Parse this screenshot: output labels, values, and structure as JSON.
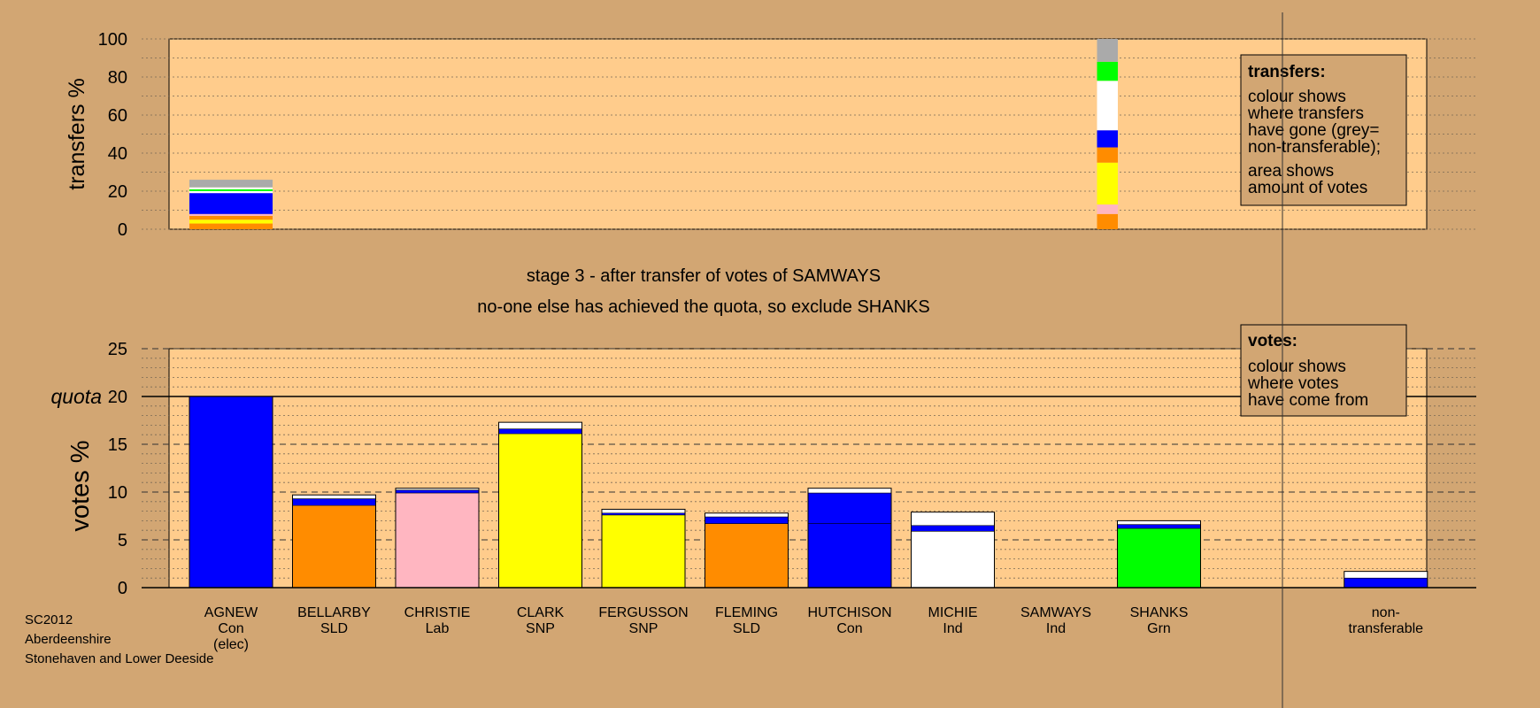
{
  "chart_data": [
    {
      "type": "bar",
      "subtype": "stacked",
      "name": "transfers",
      "ylabel": "transfers %",
      "ylim": [
        0,
        100
      ],
      "yticks": [
        0,
        20,
        40,
        60,
        80,
        100
      ],
      "grid": true,
      "legend": {
        "position": "top-right",
        "title": "transfers:",
        "lines1": [
          "colour shows",
          "where transfers",
          "have gone (grey=",
          "non-transferable);"
        ],
        "lines2": [
          "area shows",
          "amount of votes"
        ]
      },
      "columns": [
        {
          "position": 0,
          "width": 1.0,
          "segments": [
            {
              "from": 0,
              "to": 3,
              "color": "#ff8c00"
            },
            {
              "from": 3,
              "to": 5,
              "color": "#ffff00"
            },
            {
              "from": 5,
              "to": 7,
              "color": "#ff8c00"
            },
            {
              "from": 7,
              "to": 8,
              "color": "#ffb6c1"
            },
            {
              "from": 8,
              "to": 19,
              "color": "#0000ff"
            },
            {
              "from": 19,
              "to": 20,
              "color": "#ffffff"
            },
            {
              "from": 20,
              "to": 21,
              "color": "#00ff00"
            },
            {
              "from": 21,
              "to": 22,
              "color": "#ffffff"
            },
            {
              "from": 22,
              "to": 26,
              "color": "#aaaaaa"
            }
          ]
        },
        {
          "position": 8.5,
          "width": 0.25,
          "segments": [
            {
              "from": 0,
              "to": 8,
              "color": "#ff8c00"
            },
            {
              "from": 8,
              "to": 13,
              "color": "#ffb6c1"
            },
            {
              "from": 13,
              "to": 35,
              "color": "#ffff00"
            },
            {
              "from": 35,
              "to": 43,
              "color": "#ff8c00"
            },
            {
              "from": 43,
              "to": 52,
              "color": "#0000ff"
            },
            {
              "from": 52,
              "to": 78,
              "color": "#ffffff"
            },
            {
              "from": 78,
              "to": 88,
              "color": "#00ff00"
            },
            {
              "from": 88,
              "to": 100,
              "color": "#aaaaaa"
            }
          ]
        }
      ]
    },
    {
      "type": "bar",
      "subtype": "stacked",
      "name": "votes",
      "ylabel": "votes %",
      "ylim": [
        0,
        25
      ],
      "yticks": [
        0,
        5,
        10,
        15,
        20,
        25
      ],
      "quota": 20,
      "quota_label": "quota",
      "grid": true,
      "legend": {
        "position": "top-right",
        "title": "votes:",
        "lines": [
          "colour shows",
          "where votes",
          "have come from"
        ]
      },
      "categories": [
        [
          "AGNEW",
          "Con",
          "(elec)"
        ],
        [
          "BELLARBY",
          "SLD"
        ],
        [
          "CHRISTIE",
          "Lab"
        ],
        [
          "CLARK",
          "SNP"
        ],
        [
          "FERGUSSON",
          "SNP"
        ],
        [
          "FLEMING",
          "SLD"
        ],
        [
          "HUTCHISON",
          "Con"
        ],
        [
          "MICHIE",
          "Ind"
        ],
        [
          "SAMWAYS",
          "Ind"
        ],
        [
          "SHANKS",
          "Grn"
        ],
        [
          "non-",
          "transferable"
        ]
      ],
      "category_positions": [
        0,
        1,
        2,
        3,
        4,
        5,
        6,
        7,
        8,
        9,
        11.2
      ],
      "series_colors": {
        "base_Con": "#0000ff",
        "base_SLD": "#ff8c00",
        "base_Lab": "#ffb6c1",
        "base_SNP": "#ffff00",
        "base_Ind": "#ffffff",
        "base_Grn": "#00ff00",
        "from_Con": "#0000ff",
        "from_Ind": "#ffffff"
      },
      "bars": [
        {
          "total": 20.0,
          "segments": [
            {
              "to": 20.0,
              "color": "#0000ff"
            }
          ]
        },
        {
          "total": 9.7,
          "segments": [
            {
              "to": 8.6,
              "color": "#ff8c00"
            },
            {
              "to": 9.3,
              "color": "#0000ff"
            },
            {
              "to": 9.7,
              "color": "#ffffff"
            }
          ]
        },
        {
          "total": 10.4,
          "segments": [
            {
              "to": 9.9,
              "color": "#ffb6c1"
            },
            {
              "to": 10.2,
              "color": "#0000ff"
            },
            {
              "to": 10.4,
              "color": "#ffffff"
            }
          ]
        },
        {
          "total": 17.3,
          "segments": [
            {
              "to": 16.1,
              "color": "#ffff00"
            },
            {
              "to": 16.6,
              "color": "#0000ff"
            },
            {
              "to": 17.3,
              "color": "#ffffff"
            }
          ]
        },
        {
          "total": 8.2,
          "segments": [
            {
              "to": 7.6,
              "color": "#ffff00"
            },
            {
              "to": 7.8,
              "color": "#0000ff"
            },
            {
              "to": 8.2,
              "color": "#ffffff"
            }
          ]
        },
        {
          "total": 7.8,
          "segments": [
            {
              "to": 6.7,
              "color": "#ff8c00"
            },
            {
              "to": 7.4,
              "color": "#0000ff"
            },
            {
              "to": 7.8,
              "color": "#ffffff"
            }
          ]
        },
        {
          "total": 10.4,
          "segments": [
            {
              "to": 6.7,
              "color": "#0000ff"
            },
            {
              "to": 9.9,
              "color": "#0000ff"
            },
            {
              "to": 10.4,
              "color": "#ffffff"
            }
          ]
        },
        {
          "total": 7.9,
          "segments": [
            {
              "to": 5.9,
              "color": "#ffffff"
            },
            {
              "to": 6.5,
              "color": "#0000ff"
            },
            {
              "to": 7.9,
              "color": "#ffffff"
            }
          ]
        },
        {
          "total": 0,
          "segments": []
        },
        {
          "total": 7.0,
          "segments": [
            {
              "to": 6.2,
              "color": "#00ff00"
            },
            {
              "to": 6.6,
              "color": "#0000ff"
            },
            {
              "to": 7.0,
              "color": "#ffffff"
            }
          ]
        },
        {
          "total": 1.7,
          "segments": [
            {
              "to": 1.0,
              "color": "#0000ff"
            },
            {
              "to": 1.7,
              "color": "#ffffff"
            }
          ]
        }
      ]
    }
  ],
  "stage_text": "stage 3 - after transfer of votes of SAMWAYS",
  "note_text": "no-one else has achieved the quota, so exclude SHANKS",
  "footer": [
    "SC2012",
    "Aberdeenshire",
    "Stonehaven and Lower Deeside"
  ],
  "colors": {
    "background": "#d2a673",
    "plot_area": "#ffcc8c",
    "legend_box": "#d2a673"
  }
}
